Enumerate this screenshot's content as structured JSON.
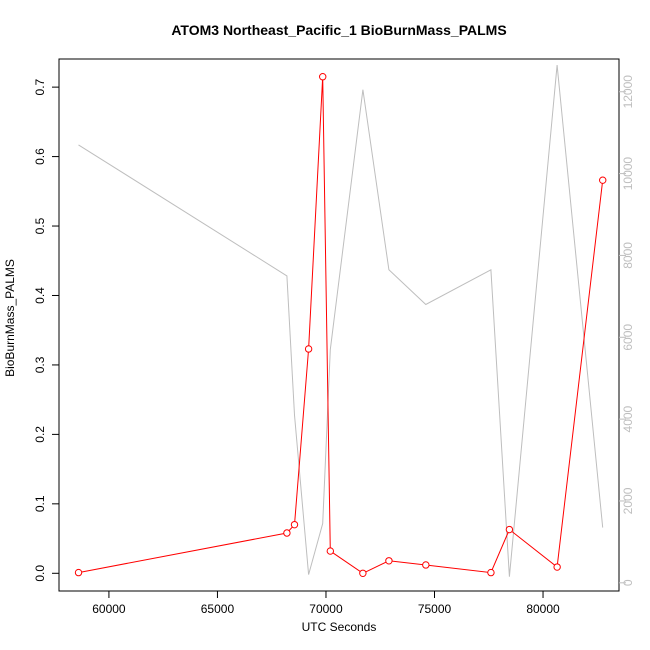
{
  "chart_data": {
    "type": "line",
    "title": "ATOM3 Northeast_Pacific_1 BioBurnMass_PALMS",
    "xlabel": "UTC Seconds",
    "ylabel": "BioBurnMass_PALMS",
    "y2label": "",
    "xlim": [
      57700,
      83500
    ],
    "ylim": [
      -0.0255,
      0.7405
    ],
    "y2lim": [
      -200,
      12800
    ],
    "x_ticks": [
      {
        "value": 60000,
        "label": "60000"
      },
      {
        "value": 65000,
        "label": "65000"
      },
      {
        "value": 70000,
        "label": "70000"
      },
      {
        "value": 75000,
        "label": "75000"
      },
      {
        "value": 80000,
        "label": "80000"
      }
    ],
    "y_ticks": [
      {
        "value": 0.0,
        "label": "0.0"
      },
      {
        "value": 0.1,
        "label": "0.1"
      },
      {
        "value": 0.2,
        "label": "0.2"
      },
      {
        "value": 0.3,
        "label": "0.3"
      },
      {
        "value": 0.4,
        "label": "0.4"
      },
      {
        "value": 0.5,
        "label": "0.5"
      },
      {
        "value": 0.6,
        "label": "0.6"
      },
      {
        "value": 0.7,
        "label": "0.7"
      }
    ],
    "y2_ticks": [
      {
        "value": 0,
        "label": "0"
      },
      {
        "value": 2000,
        "label": "2000"
      },
      {
        "value": 4000,
        "label": "4000"
      },
      {
        "value": 6000,
        "label": "6000"
      },
      {
        "value": 8000,
        "label": "8000"
      },
      {
        "value": 10000,
        "label": "10000"
      },
      {
        "value": 12000,
        "label": "12000"
      }
    ],
    "series": [
      {
        "axis": "left",
        "color": "#ff0000",
        "markers": "open-circle",
        "x": [
          58600,
          68200,
          68550,
          69200,
          69850,
          70200,
          71700,
          72900,
          74600,
          77600,
          78450,
          80650,
          82750
        ],
        "y": [
          0.001,
          0.058,
          0.07,
          0.323,
          0.715,
          0.032,
          0.0,
          0.018,
          0.012,
          0.001,
          0.063,
          0.009,
          0.566
        ]
      },
      {
        "axis": "right",
        "color": "#bebebe",
        "markers": "none",
        "x": [
          58600,
          68200,
          68550,
          69200,
          69850,
          70200,
          71700,
          72900,
          74600,
          77600,
          78450,
          80650,
          82750
        ],
        "y": [
          10700,
          7500,
          4100,
          200,
          1450,
          5700,
          12050,
          7650,
          6800,
          7650,
          150,
          12650,
          1350
        ]
      }
    ],
    "grid": false,
    "legend": "none"
  }
}
